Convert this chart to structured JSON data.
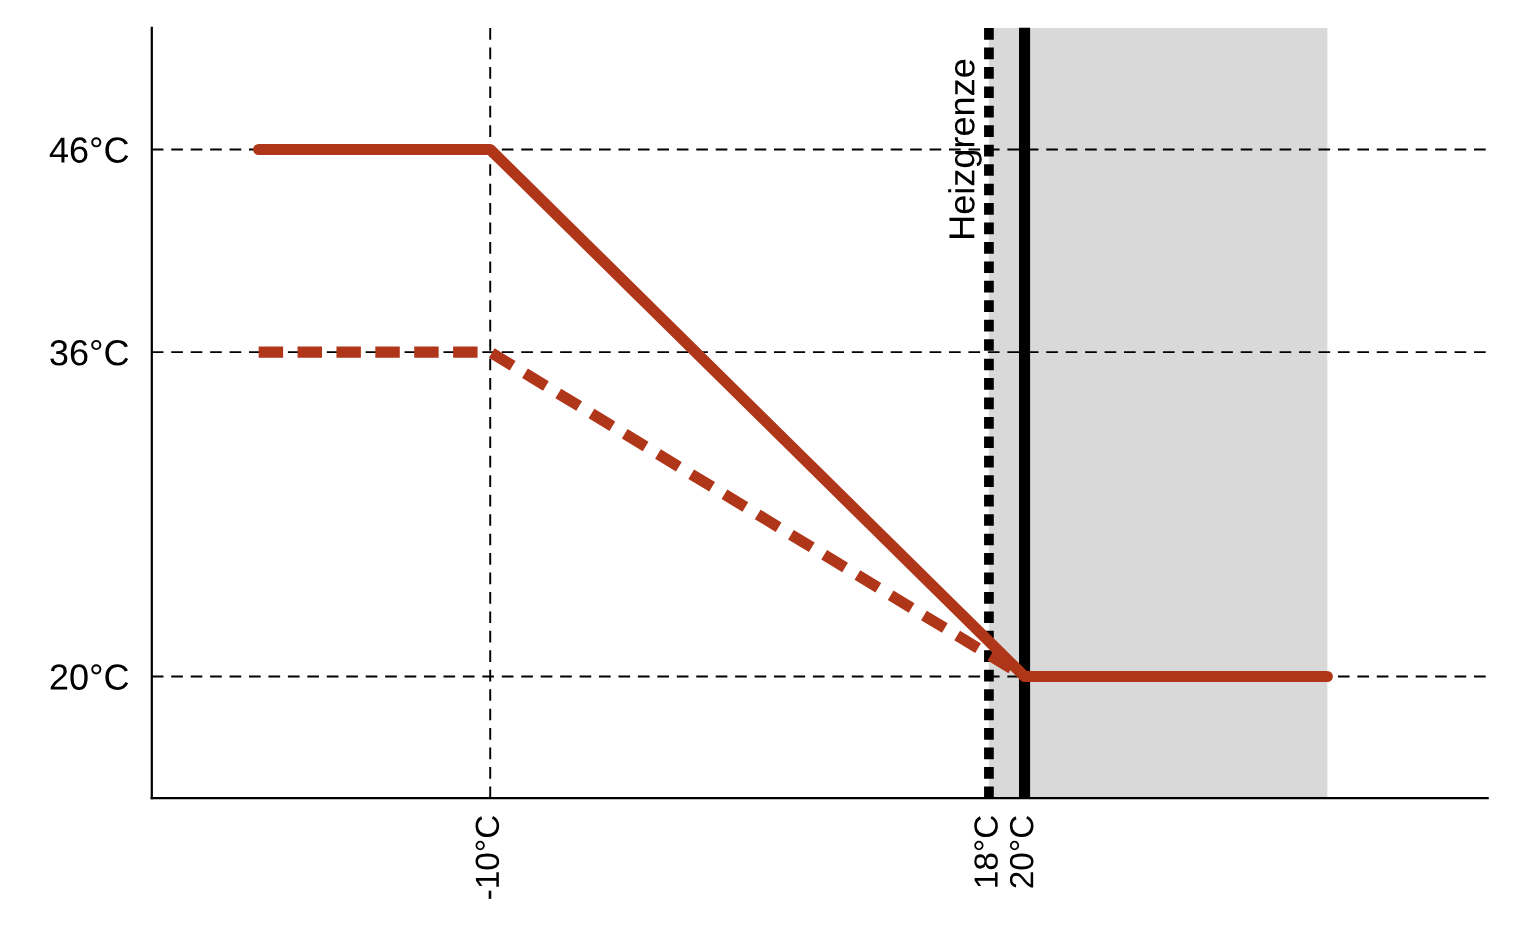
{
  "chart_data": {
    "type": "line",
    "x": [
      -23,
      -10,
      20,
      37
    ],
    "series": [
      {
        "color": "#b0361a",
        "values": [
          46,
          46,
          20,
          20
        ],
        "line_style": "solid"
      },
      {
        "color": "#b0361a",
        "x": [
          -23,
          -10,
          20
        ],
        "values": [
          36,
          36,
          20
        ],
        "line_style": "dashed"
      }
    ],
    "xlim": [
      -29,
      46
    ],
    "ylim": [
      14,
      52
    ],
    "xticks": [
      {
        "value": -10,
        "label": "-10°C"
      },
      {
        "value": 18,
        "label": "18°C"
      },
      {
        "value": 20,
        "label": "20°C"
      }
    ],
    "yticks": [
      {
        "value": 20,
        "label": "20°C"
      },
      {
        "value": 36,
        "label": "36°C"
      },
      {
        "value": 46,
        "label": "46°C"
      }
    ],
    "bands": [
      {
        "axis": "x",
        "from": 18,
        "to": 37,
        "color": "#d9d9d9"
      }
    ],
    "ref_lines": [
      {
        "axis": "x",
        "value": -10,
        "line_style": "dashed",
        "color": "#000000"
      },
      {
        "axis": "y",
        "value": 46,
        "line_style": "dashed",
        "color": "#000000"
      },
      {
        "axis": "y",
        "value": 36,
        "line_style": "dashed",
        "color": "#000000"
      },
      {
        "axis": "y",
        "value": 20,
        "line_style": "dashed",
        "color": "#000000"
      },
      {
        "axis": "x",
        "value": 18,
        "line_style": "dotted",
        "color": "#000000",
        "label": "Heizgrenze"
      },
      {
        "axis": "x",
        "value": 20,
        "line_style": "solid",
        "color": "#000000"
      }
    ],
    "grid": false,
    "legend": false
  }
}
